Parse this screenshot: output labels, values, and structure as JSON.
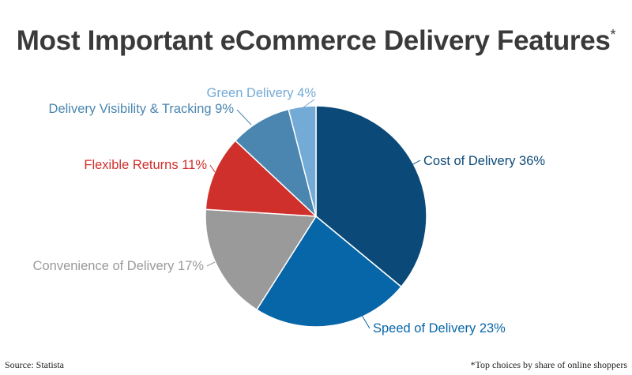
{
  "title": "Most Important eCommerce Delivery Features",
  "title_mark": "*",
  "source": "Source: Statista",
  "note": "*Top choices by share of online shoppers",
  "chart_data": {
    "type": "pie",
    "unit": "%",
    "start": "12 o'clock",
    "direction": "clockwise",
    "slices": [
      {
        "label": "Cost of Delivery",
        "value": 36,
        "display": "Cost of Delivery 36%",
        "color": "#0b4a78"
      },
      {
        "label": "Speed of Delivery",
        "value": 23,
        "display": "Speed of Delivery 23%",
        "color": "#0766a8"
      },
      {
        "label": "Convenience of Delivery",
        "value": 17,
        "display": "Convenience of Delivery 17%",
        "color": "#9a9a9a"
      },
      {
        "label": "Flexible Returns",
        "value": 11,
        "display": "Flexible Returns 11%",
        "color": "#d0302b"
      },
      {
        "label": "Delivery Visibility & Tracking",
        "value": 9,
        "display": "Delivery Visibility & Tracking 9%",
        "color": "#4a86b0"
      },
      {
        "label": "Green Delivery",
        "value": 4,
        "display": "Green Delivery 4%",
        "color": "#74aad6"
      }
    ]
  }
}
